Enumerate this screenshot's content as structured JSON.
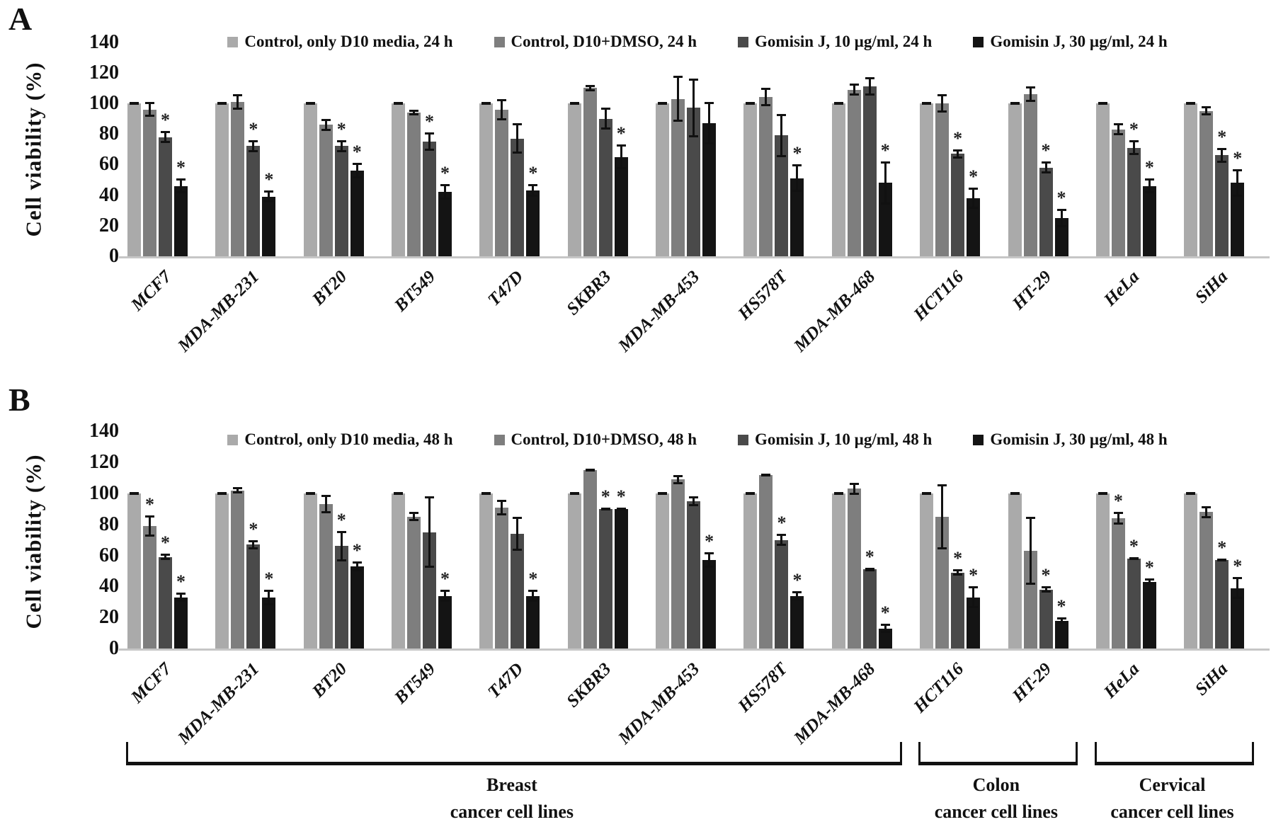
{
  "figure": {
    "description_visible_text_only": true
  },
  "chart_data": [
    {
      "type": "bar",
      "panel_label": "A",
      "ylabel": "Cell viability (%)",
      "ylim": [
        0,
        140
      ],
      "yticks": [
        0,
        20,
        40,
        60,
        80,
        100,
        120,
        140
      ],
      "grid": false,
      "legend_position": "top",
      "categories": [
        "MCF7",
        "MDA-MB-231",
        "BT20",
        "BT549",
        "T47D",
        "SKBR3",
        "MDA-MB-453",
        "HS578T",
        "MDA-MB-468",
        "HCT116",
        "HT-29",
        "HeLa",
        "SiHa"
      ],
      "series": [
        {
          "name": "Control, only D10 media, 24 h",
          "color": "#aaaaaa",
          "values": [
            100,
            100,
            100,
            100,
            100,
            100,
            100,
            100,
            100,
            100,
            100,
            100,
            100
          ],
          "errors": [
            1,
            1,
            1,
            1,
            1,
            1,
            1,
            1,
            1,
            1,
            1,
            1,
            1
          ],
          "asterisks": [
            0,
            0,
            0,
            0,
            0,
            0,
            0,
            0,
            0,
            0,
            0,
            0,
            0
          ]
        },
        {
          "name": "Control, D10+DMSO, 24 h",
          "color": "#7e7e7e",
          "values": [
            96,
            101,
            86,
            94,
            96,
            110,
            103,
            104,
            109,
            100,
            106,
            83,
            95
          ],
          "errors": [
            5,
            5,
            4,
            2,
            7,
            2,
            15,
            6,
            4,
            6,
            5,
            4,
            3
          ],
          "asterisks": [
            0,
            0,
            0,
            0,
            0,
            0,
            0,
            0,
            0,
            0,
            0,
            0,
            0
          ]
        },
        {
          "name": "Gomisin J, 10 µg/ml, 24 h",
          "color": "#4a4a4a",
          "values": [
            78,
            72,
            72,
            75,
            77,
            90,
            97,
            79,
            111,
            67,
            58,
            71,
            66
          ],
          "errors": [
            4,
            4,
            4,
            6,
            10,
            7,
            19,
            14,
            6,
            3,
            4,
            5,
            5
          ],
          "asterisks": [
            1,
            1,
            1,
            1,
            0,
            0,
            0,
            0,
            0,
            1,
            1,
            1,
            1
          ]
        },
        {
          "name": "Gomisin J, 30 µg/ml, 24 h",
          "color": "#141414",
          "values": [
            46,
            39,
            56,
            42,
            43,
            65,
            87,
            51,
            48,
            38,
            25,
            46,
            48
          ],
          "errors": [
            5,
            4,
            5,
            5,
            4,
            8,
            14,
            9,
            14,
            7,
            6,
            5,
            9
          ],
          "asterisks": [
            1,
            1,
            1,
            1,
            1,
            1,
            0,
            1,
            1,
            1,
            1,
            1,
            1
          ]
        }
      ]
    },
    {
      "type": "bar",
      "panel_label": "B",
      "ylabel": "Cell viability (%)",
      "ylim": [
        0,
        140
      ],
      "yticks": [
        0,
        20,
        40,
        60,
        80,
        100,
        120,
        140
      ],
      "grid": false,
      "legend_position": "top",
      "categories": [
        "MCF7",
        "MDA-MB-231",
        "BT20",
        "BT549",
        "T47D",
        "SKBR3",
        "MDA-MB-453",
        "HS578T",
        "MDA-MB-468",
        "HCT116",
        "HT-29",
        "HeLa",
        "SiHa"
      ],
      "series": [
        {
          "name": "Control, only D10 media, 48 h",
          "color": "#aaaaaa",
          "values": [
            100,
            100,
            100,
            100,
            100,
            100,
            100,
            100,
            100,
            100,
            100,
            100,
            100
          ],
          "errors": [
            1,
            1,
            1,
            1,
            1,
            1,
            1,
            1,
            1,
            1,
            1,
            1,
            1
          ],
          "asterisks": [
            0,
            0,
            0,
            0,
            0,
            0,
            0,
            0,
            0,
            0,
            0,
            0,
            0
          ]
        },
        {
          "name": "Control, D10+DMSO, 48 h",
          "color": "#7e7e7e",
          "values": [
            79,
            102,
            93,
            85,
            91,
            115,
            109,
            112,
            103,
            85,
            63,
            84,
            88
          ],
          "errors": [
            7,
            2,
            6,
            3,
            5,
            1,
            3,
            1,
            4,
            21,
            22,
            4,
            4
          ],
          "asterisks": [
            1,
            0,
            0,
            0,
            0,
            0,
            0,
            0,
            0,
            0,
            0,
            1,
            0
          ]
        },
        {
          "name": "Gomisin J, 10 µg/ml, 48 h",
          "color": "#4a4a4a",
          "values": [
            59,
            67,
            66,
            75,
            74,
            90,
            95,
            70,
            51,
            49,
            38,
            58,
            57
          ],
          "errors": [
            2,
            3,
            10,
            23,
            11,
            1,
            3,
            4,
            1,
            2,
            2,
            1,
            1
          ],
          "asterisks": [
            1,
            1,
            1,
            0,
            0,
            1,
            0,
            1,
            1,
            1,
            1,
            1,
            1
          ]
        },
        {
          "name": "Gomisin J, 30 µg/ml, 48 h",
          "color": "#141414",
          "values": [
            33,
            33,
            53,
            34,
            34,
            90,
            57,
            34,
            13,
            33,
            18,
            43,
            39
          ],
          "errors": [
            3,
            5,
            3,
            4,
            4,
            1,
            5,
            3,
            3,
            7,
            2,
            2,
            7
          ],
          "asterisks": [
            1,
            1,
            1,
            1,
            1,
            1,
            1,
            1,
            1,
            1,
            1,
            1,
            1
          ]
        }
      ]
    }
  ],
  "category_groups": [
    {
      "line1": "Breast",
      "line2": "cancer cell lines",
      "span": [
        0,
        8
      ]
    },
    {
      "line1": "Colon",
      "line2": "cancer cell lines",
      "span": [
        9,
        10
      ]
    },
    {
      "line1": "Cervical",
      "line2": "cancer cell lines",
      "span": [
        11,
        12
      ]
    }
  ]
}
